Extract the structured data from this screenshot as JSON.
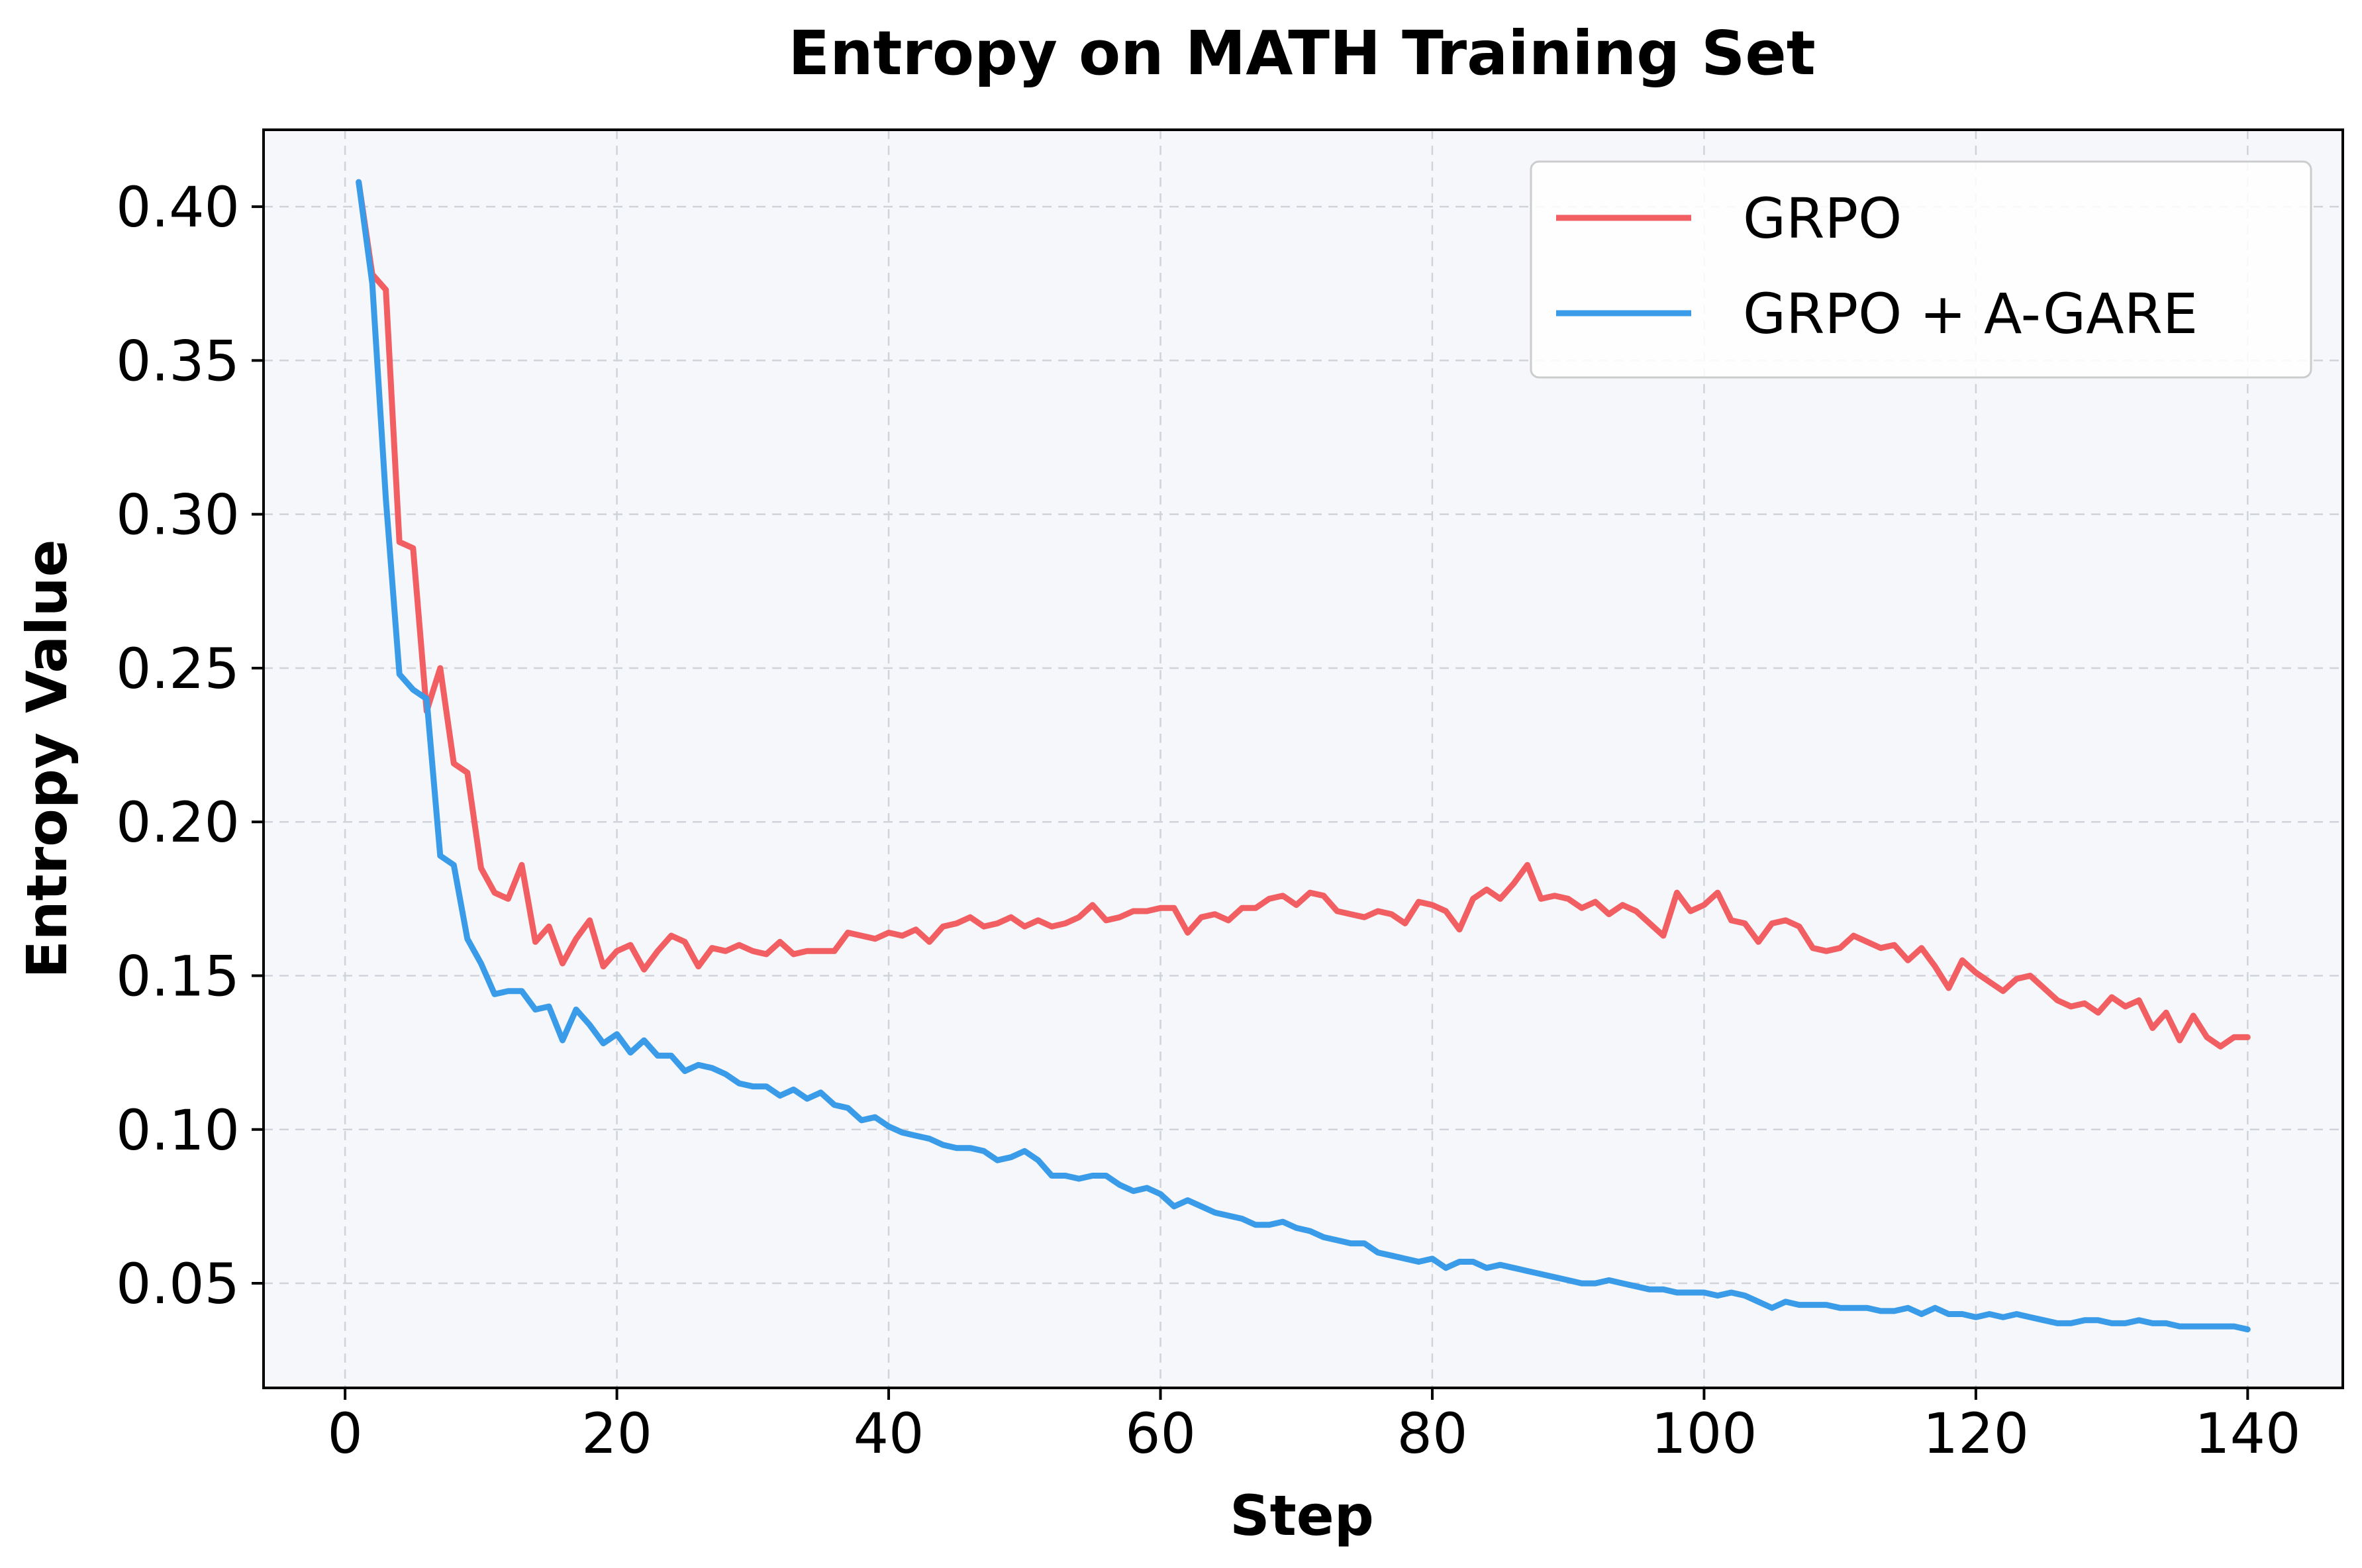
{
  "chart_data": {
    "type": "line",
    "title": "Entropy on MATH Training Set",
    "xlabel": "Step",
    "ylabel": "Entropy Value",
    "xlim": [
      -6,
      147
    ],
    "ylim": [
      0.016,
      0.425
    ],
    "xticks": [
      0,
      20,
      40,
      60,
      80,
      100,
      120,
      140
    ],
    "xtick_labels": [
      "0",
      "20",
      "40",
      "60",
      "80",
      "100",
      "120",
      "140"
    ],
    "yticks": [
      0.05,
      0.1,
      0.15,
      0.2,
      0.25,
      0.3,
      0.35,
      0.4
    ],
    "ytick_labels": [
      "0.05",
      "0.10",
      "0.15",
      "0.20",
      "0.25",
      "0.30",
      "0.35",
      "0.40"
    ],
    "grid": true,
    "legend_position": "top-right",
    "background": "#f5f7fa",
    "series": [
      {
        "name": "GRPO",
        "color": "#f25f63",
        "x_start": 1,
        "values": [
          0.408,
          0.378,
          0.373,
          0.291,
          0.289,
          0.236,
          0.25,
          0.219,
          0.216,
          0.185,
          0.177,
          0.175,
          0.186,
          0.161,
          0.166,
          0.154,
          0.162,
          0.168,
          0.153,
          0.158,
          0.16,
          0.152,
          0.158,
          0.163,
          0.161,
          0.153,
          0.159,
          0.158,
          0.16,
          0.158,
          0.157,
          0.161,
          0.157,
          0.158,
          0.158,
          0.158,
          0.164,
          0.163,
          0.162,
          0.164,
          0.163,
          0.165,
          0.161,
          0.166,
          0.167,
          0.169,
          0.166,
          0.167,
          0.169,
          0.166,
          0.168,
          0.166,
          0.167,
          0.169,
          0.173,
          0.168,
          0.169,
          0.171,
          0.171,
          0.172,
          0.172,
          0.164,
          0.169,
          0.17,
          0.168,
          0.172,
          0.172,
          0.175,
          0.176,
          0.173,
          0.177,
          0.176,
          0.171,
          0.17,
          0.169,
          0.171,
          0.17,
          0.167,
          0.174,
          0.173,
          0.171,
          0.165,
          0.175,
          0.178,
          0.175,
          0.18,
          0.186,
          0.175,
          0.176,
          0.175,
          0.172,
          0.174,
          0.17,
          0.173,
          0.171,
          0.167,
          0.163,
          0.177,
          0.171,
          0.173,
          0.177,
          0.168,
          0.167,
          0.161,
          0.167,
          0.168,
          0.166,
          0.159,
          0.158,
          0.159,
          0.163,
          0.161,
          0.159,
          0.16,
          0.155,
          0.159,
          0.153,
          0.146,
          0.155,
          0.151,
          0.148,
          0.145,
          0.149,
          0.15,
          0.146,
          0.142,
          0.14,
          0.141,
          0.138,
          0.143,
          0.14,
          0.142,
          0.133,
          0.138,
          0.129,
          0.137,
          0.13,
          0.127,
          0.13,
          0.13
        ]
      },
      {
        "name": "GRPO + A-GARE",
        "color": "#3a9ce8",
        "x_start": 1,
        "values": [
          0.408,
          0.375,
          0.305,
          0.248,
          0.243,
          0.24,
          0.189,
          0.186,
          0.162,
          0.154,
          0.144,
          0.145,
          0.145,
          0.139,
          0.14,
          0.129,
          0.139,
          0.134,
          0.128,
          0.131,
          0.125,
          0.129,
          0.124,
          0.124,
          0.119,
          0.121,
          0.12,
          0.118,
          0.115,
          0.114,
          0.114,
          0.111,
          0.113,
          0.11,
          0.112,
          0.108,
          0.107,
          0.103,
          0.104,
          0.101,
          0.099,
          0.098,
          0.097,
          0.095,
          0.094,
          0.094,
          0.093,
          0.09,
          0.091,
          0.093,
          0.09,
          0.085,
          0.085,
          0.084,
          0.085,
          0.085,
          0.082,
          0.08,
          0.081,
          0.079,
          0.075,
          0.077,
          0.075,
          0.073,
          0.072,
          0.071,
          0.069,
          0.069,
          0.07,
          0.068,
          0.067,
          0.065,
          0.064,
          0.063,
          0.063,
          0.06,
          0.059,
          0.058,
          0.057,
          0.058,
          0.055,
          0.057,
          0.057,
          0.055,
          0.056,
          0.055,
          0.054,
          0.053,
          0.052,
          0.051,
          0.05,
          0.05,
          0.051,
          0.05,
          0.049,
          0.048,
          0.048,
          0.047,
          0.047,
          0.047,
          0.046,
          0.047,
          0.046,
          0.044,
          0.042,
          0.044,
          0.043,
          0.043,
          0.043,
          0.042,
          0.042,
          0.042,
          0.041,
          0.041,
          0.042,
          0.04,
          0.042,
          0.04,
          0.04,
          0.039,
          0.04,
          0.039,
          0.04,
          0.039,
          0.038,
          0.037,
          0.037,
          0.038,
          0.038,
          0.037,
          0.037,
          0.038,
          0.037,
          0.037,
          0.036,
          0.036,
          0.036,
          0.036,
          0.036,
          0.035
        ]
      }
    ]
  }
}
